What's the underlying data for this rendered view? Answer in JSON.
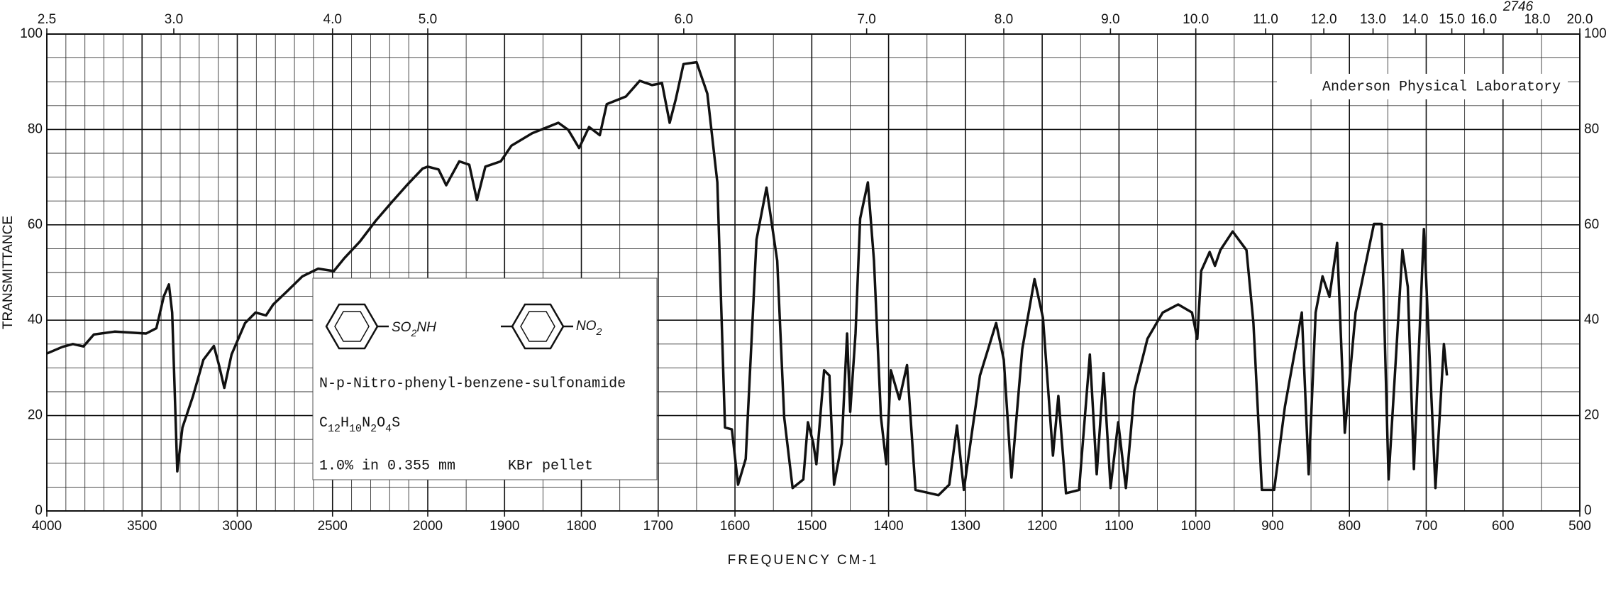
{
  "chart_data": {
    "type": "line",
    "ylabel": "TRANSMITTANCE",
    "xlabel": "FREQUENCY CM-1",
    "annotation": "Anderson Physical Laboratory",
    "sheet_number": "2746",
    "sample": {
      "structure_group": "SO2NH",
      "structure_substituent": "NO2",
      "name": "N-p-Nitro-phenyl-benzene-sulfonamide",
      "formula": "C12H10N2O4S",
      "conditions": "1.0% in 0.355 mm",
      "medium": "KBr pellet"
    },
    "color": "#111111",
    "xlim": [
      4000,
      500
    ],
    "x_break": 2000,
    "ylim": [
      0,
      100
    ],
    "yticks": [
      0,
      20,
      40,
      60,
      80,
      100
    ],
    "xticks": [
      4000,
      3500,
      3000,
      2500,
      2000,
      1900,
      1800,
      1700,
      1600,
      1500,
      1400,
      1300,
      1200,
      1100,
      1000,
      900,
      800,
      700,
      600,
      500
    ],
    "x2ticks": [
      {
        "value": 2.5,
        "label": "2.5"
      },
      {
        "value": 3,
        "label": "3.0"
      },
      {
        "value": 4,
        "label": "4.0"
      },
      {
        "value": 5,
        "label": "5.0"
      },
      {
        "value": 6,
        "label": "6.0"
      },
      {
        "value": 7,
        "label": "7.0"
      },
      {
        "value": 8,
        "label": "8.0"
      },
      {
        "value": 9,
        "label": "9.0"
      },
      {
        "value": 10,
        "label": "10.0"
      },
      {
        "value": 11,
        "label": "11.0"
      },
      {
        "value": 12,
        "label": "12.0"
      },
      {
        "value": 13,
        "label": "13.0"
      },
      {
        "value": 14,
        "label": "14.0"
      },
      {
        "value": 15,
        "label": "15.0"
      },
      {
        "value": 16,
        "label": "16.0"
      },
      {
        "value": 18,
        "label": "18.0"
      },
      {
        "value": 20,
        "label": "20.0"
      }
    ],
    "y_grid": [
      5,
      10,
      15,
      25,
      30,
      35,
      45,
      50,
      55,
      65,
      70,
      75,
      85,
      90,
      95
    ],
    "x_grid": [
      3900,
      3800,
      3700,
      3600,
      3400,
      3300,
      3200,
      3100,
      2900,
      2800,
      2700,
      2600,
      2400,
      2300,
      2200,
      2100,
      1950,
      1850,
      1750,
      1650,
      1550,
      1450,
      1350,
      1250,
      1150,
      1050,
      950,
      850,
      750,
      650,
      550
    ],
    "x": [
      4000,
      3918,
      3863,
      3808,
      3753,
      3644,
      3479,
      3425,
      3386,
      3359,
      3342,
      3315,
      3288,
      3233,
      3178,
      3123,
      3096,
      3068,
      3030,
      2959,
      2904,
      2849,
      2811,
      2740,
      2658,
      2575,
      2493,
      2438,
      2356,
      2274,
      2192,
      2110,
      2027,
      2000,
      1986,
      1976,
      1959,
      1946,
      1936,
      1925,
      1905,
      1891,
      1864,
      1830,
      1817,
      1803,
      1790,
      1776,
      1767,
      1742,
      1724,
      1708,
      1695,
      1685,
      1677,
      1667,
      1650,
      1636,
      1623,
      1613,
      1604,
      1596,
      1586,
      1572,
      1559,
      1545,
      1536,
      1525,
      1511,
      1505,
      1498,
      1494,
      1484,
      1477,
      1471,
      1461,
      1454,
      1450,
      1443,
      1437,
      1427,
      1419,
      1410,
      1403,
      1397,
      1386,
      1376,
      1365,
      1335,
      1321,
      1311,
      1302,
      1281,
      1260,
      1250,
      1240,
      1226,
      1210,
      1199,
      1186,
      1179,
      1169,
      1152,
      1138,
      1129,
      1120,
      1111,
      1101,
      1091,
      1080,
      1063,
      1043,
      1023,
      1005,
      998,
      993,
      982,
      975,
      968,
      952,
      934,
      925,
      914,
      898,
      884,
      862,
      853,
      844,
      835,
      826,
      816,
      806,
      792,
      768,
      758,
      749,
      731,
      724,
      716,
      703,
      688,
      677,
      673
    ],
    "values": [
      33,
      34.4,
      35,
      34.5,
      37,
      37.6,
      37.2,
      38.3,
      45,
      47.5,
      41.6,
      8.3,
      17.5,
      24,
      31.7,
      34.6,
      30.6,
      25.8,
      32.8,
      39.4,
      41.6,
      41,
      43.3,
      46,
      49.2,
      50.8,
      50.3,
      53,
      56.5,
      60.8,
      64.6,
      68.3,
      71.8,
      72.2,
      71.6,
      68.3,
      73.3,
      72.6,
      65.2,
      72.2,
      73.3,
      76.6,
      79.2,
      81.4,
      79.9,
      76.1,
      80.5,
      78.8,
      85.3,
      86.9,
      90.2,
      89.3,
      89.7,
      81.4,
      86.4,
      93.7,
      94.1,
      87.5,
      68.9,
      17.5,
      17.1,
      5.5,
      10.9,
      56.9,
      67.8,
      52.5,
      19.7,
      4.8,
      6.6,
      18.6,
      14.2,
      9.8,
      29.5,
      28.4,
      5.5,
      14.2,
      37.2,
      20.8,
      37.2,
      61.3,
      68.9,
      52.5,
      19.7,
      9.8,
      29.5,
      23.4,
      30.6,
      4.4,
      3.3,
      5.5,
      17.9,
      4.4,
      28.4,
      39.4,
      31.7,
      7,
      33.9,
      48.6,
      40.5,
      11.6,
      24.1,
      3.7,
      4.4,
      32.8,
      7.7,
      28.9,
      4.8,
      18.6,
      4.8,
      25.2,
      36.1,
      41.6,
      43.3,
      41.6,
      36.1,
      50.3,
      54.3,
      51.4,
      54.7,
      58.6,
      54.7,
      39.4,
      4.4,
      4.4,
      21.9,
      41.6,
      7.7,
      41.6,
      49.2,
      44.9,
      56.2,
      16.4,
      41.6,
      60.2,
      60.2,
      6.6,
      54.7,
      47,
      8.8,
      59.1,
      4.8,
      35,
      28.4
    ]
  }
}
